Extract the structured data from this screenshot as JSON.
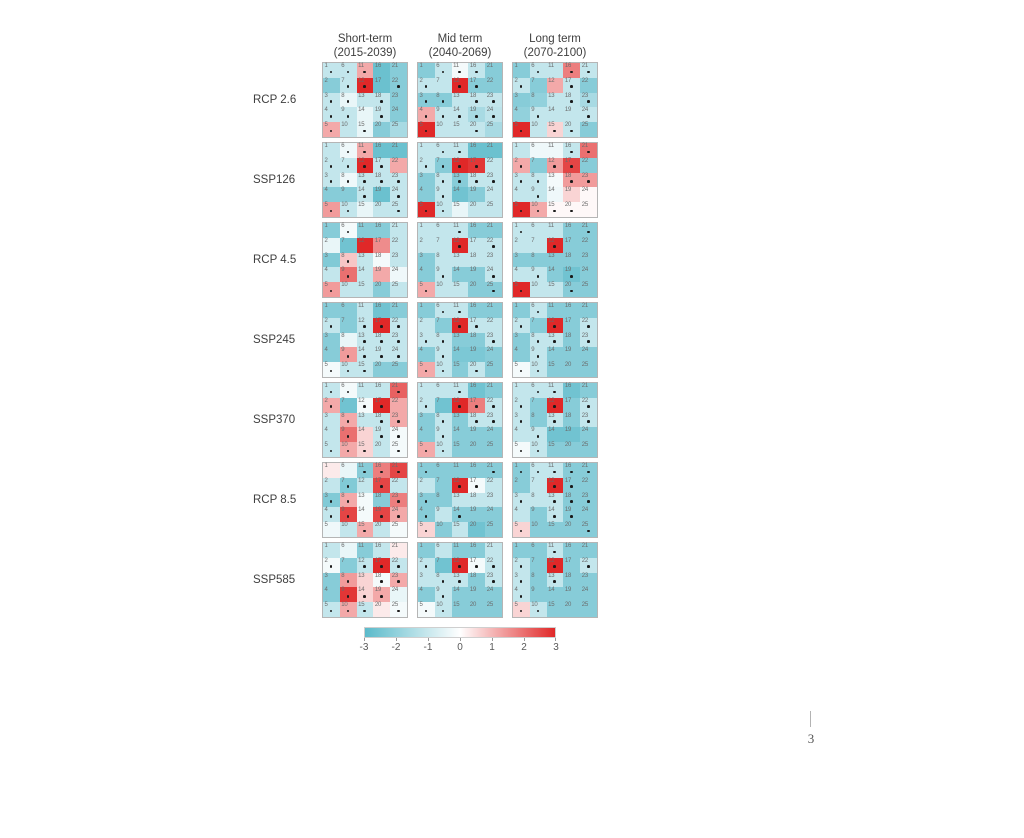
{
  "page": {
    "number": "3"
  },
  "chart_data": {
    "type": "heatmap",
    "title": "",
    "columns": [
      {
        "label": "Short-term",
        "period": "(2015-2039)"
      },
      {
        "label": "Mid term",
        "period": "(2040-2069)"
      },
      {
        "label": "Long term",
        "period": "(2070-2100)"
      }
    ],
    "rows": [
      "RCP 2.6",
      "SSP126",
      "RCP 4.5",
      "SSP245",
      "SSP370",
      "RCP 8.5",
      "SSP585"
    ],
    "cells_per_grid": 25,
    "cell_number_order": "column-major, 1-5 down first column through 21-25 down last column",
    "value_range": [
      -3,
      3
    ],
    "colorbar": {
      "ticks": [
        "-3",
        "-2",
        "-1",
        "0",
        "1",
        "2",
        "3"
      ],
      "min_color": "#5bbaca",
      "mid_color": "#ffffff",
      "max_color": "#e02828"
    },
    "grids": [
      {
        "row": "RCP 2.6",
        "col": "Short-term",
        "values": [
          -1.1,
          -2.2,
          -1.1,
          -1.1,
          1.2,
          -1.1,
          -1.1,
          -0.4,
          -1.1,
          -1.1,
          1.2,
          3,
          -1.1,
          -0.4,
          -0.4,
          -2.7,
          -2.7,
          -1.1,
          -1.1,
          -2.2,
          -2.2,
          -2.2,
          -2.2,
          -2.2,
          -1.6
        ],
        "dots": [
          1,
          0,
          1,
          1,
          1,
          1,
          1,
          1,
          1,
          0,
          1,
          1,
          0,
          0,
          1,
          0,
          0,
          1,
          1,
          0,
          0,
          1,
          0,
          0,
          0
        ]
      },
      {
        "row": "RCP 2.6",
        "col": "Mid term",
        "values": [
          -2.2,
          -1.1,
          -2.2,
          1.2,
          3,
          -1.1,
          -1.1,
          -2.2,
          -1.1,
          -1.1,
          -0.2,
          3,
          -1.1,
          -1.1,
          -1.1,
          -1.1,
          -2.2,
          -1.1,
          -1.6,
          -1.1,
          -2.2,
          -2.2,
          -1.1,
          -1.2,
          -1.6
        ],
        "dots": [
          0,
          1,
          1,
          1,
          1,
          1,
          0,
          1,
          1,
          0,
          1,
          1,
          0,
          1,
          0,
          1,
          1,
          1,
          1,
          1,
          0,
          0,
          1,
          1,
          0
        ]
      },
      {
        "row": "RCP 2.6",
        "col": "Long term",
        "values": [
          -2.2,
          -1.1,
          -2.2,
          -2.0,
          3,
          -1.1,
          -2.2,
          -2.0,
          -1.1,
          -1.1,
          -1.1,
          1.2,
          -1.1,
          -1.1,
          0.6,
          1.8,
          -1.1,
          -1.1,
          -1.1,
          -1.1,
          -1.1,
          -2.2,
          -1.6,
          -1.1,
          -2.2
        ],
        "dots": [
          0,
          1,
          0,
          0,
          1,
          1,
          0,
          0,
          1,
          0,
          0,
          0,
          0,
          0,
          1,
          1,
          1,
          1,
          0,
          1,
          1,
          0,
          1,
          1,
          0
        ]
      },
      {
        "row": "SSP126",
        "col": "Short-term",
        "values": [
          -1.1,
          -1.1,
          -1.1,
          -2.2,
          1.4,
          -0.3,
          -1.1,
          -0.3,
          -2.2,
          -1.1,
          1.2,
          3,
          -1.1,
          -1.1,
          -0.4,
          -2.7,
          -1.1,
          -1.1,
          -2.7,
          -1.1,
          -2.7,
          1.2,
          -1.1,
          -1.1,
          -1.1
        ],
        "dots": [
          0,
          1,
          1,
          0,
          1,
          1,
          1,
          1,
          0,
          1,
          1,
          1,
          1,
          1,
          0,
          0,
          1,
          1,
          0,
          0,
          0,
          0,
          1,
          1,
          1
        ]
      },
      {
        "row": "SSP126",
        "col": "Mid term",
        "values": [
          -1.1,
          -1.1,
          -2.2,
          -2.2,
          3,
          -1.1,
          -2.2,
          -1.1,
          -1.1,
          -1.1,
          -1.1,
          3,
          -2.2,
          -2.6,
          -0.4,
          -2.7,
          2.8,
          -1.1,
          -2.2,
          -1.1,
          -2.7,
          -1.1,
          -1.1,
          -1.1,
          -1.1
        ],
        "dots": [
          0,
          1,
          0,
          0,
          1,
          1,
          1,
          1,
          1,
          1,
          1,
          1,
          1,
          0,
          0,
          0,
          1,
          1,
          0,
          0,
          0,
          0,
          1,
          0,
          0
        ]
      },
      {
        "row": "SSP126",
        "col": "Long term",
        "values": [
          -1.1,
          1.2,
          -1.1,
          -1.1,
          3,
          -0.3,
          -2.2,
          -1.1,
          -1.1,
          1.2,
          -0.3,
          1.4,
          -0.2,
          -0.3,
          0.1,
          -1.1,
          2.6,
          1.4,
          0.6,
          0.1,
          2.0,
          -2.2,
          1.4,
          0.1,
          0.1
        ],
        "dots": [
          0,
          1,
          1,
          0,
          1,
          0,
          0,
          1,
          1,
          1,
          0,
          1,
          0,
          0,
          1,
          1,
          1,
          1,
          0,
          1,
          1,
          0,
          1,
          0,
          0
        ]
      },
      {
        "row": "RCP 4.5",
        "col": "Short-term",
        "values": [
          -2.2,
          -0.4,
          -2.3,
          -1.1,
          1.4,
          -0.2,
          -2.6,
          0.8,
          2.0,
          -1.1,
          -2.2,
          3,
          -1.1,
          -1.1,
          -1.1,
          -2.2,
          1.6,
          -0.2,
          1.2,
          -2.2,
          -1.1,
          -1.1,
          -1.1,
          -0.3,
          -1.1
        ],
        "dots": [
          0,
          0,
          0,
          0,
          1,
          1,
          0,
          1,
          1,
          0,
          0,
          0,
          0,
          0,
          0,
          0,
          0,
          0,
          0,
          0,
          0,
          0,
          0,
          0,
          0
        ]
      },
      {
        "row": "RCP 4.5",
        "col": "Mid term",
        "values": [
          -1.1,
          -1.1,
          -2.2,
          -2.2,
          1.2,
          -1.1,
          -1.1,
          -1.1,
          -1.1,
          -1.1,
          -1.1,
          3,
          -1.1,
          -2.2,
          -1.1,
          -2.2,
          -1.1,
          -1.1,
          -2.2,
          -2.2,
          -2.2,
          -1.1,
          -1.1,
          -1.1,
          -2.2
        ],
        "dots": [
          0,
          0,
          0,
          0,
          1,
          0,
          0,
          0,
          1,
          0,
          1,
          1,
          0,
          0,
          0,
          0,
          0,
          0,
          0,
          0,
          0,
          1,
          0,
          1,
          1
        ]
      },
      {
        "row": "RCP 4.5",
        "col": "Long term",
        "values": [
          -1.1,
          -1.1,
          -2.2,
          -1.1,
          3,
          -1.1,
          -1.1,
          -2.2,
          -1.1,
          -1.1,
          -1.1,
          3,
          -2.2,
          -2.2,
          -1.1,
          -2.2,
          -2.2,
          -2.2,
          -2.6,
          -2.2,
          -2.2,
          -2.2,
          -2.2,
          -2.2,
          -2.2
        ],
        "dots": [
          1,
          0,
          0,
          0,
          1,
          0,
          0,
          0,
          1,
          0,
          0,
          1,
          0,
          0,
          0,
          0,
          0,
          0,
          1,
          1,
          1,
          0,
          0,
          0,
          0
        ]
      },
      {
        "row": "SSP245",
        "col": "Short-term",
        "values": [
          -2.2,
          -1.1,
          -2.2,
          -2.2,
          -0.2,
          -2.2,
          -2.2,
          -0.4,
          1.4,
          -1.1,
          -1.1,
          -1.1,
          -1.1,
          -1.1,
          -1.1,
          -2.6,
          3,
          -1.1,
          -1.1,
          -2.2,
          -2.2,
          -1.1,
          -1.1,
          -1.1,
          -2.2
        ],
        "dots": [
          0,
          1,
          0,
          0,
          1,
          0,
          0,
          0,
          1,
          1,
          0,
          1,
          1,
          1,
          1,
          0,
          1,
          1,
          1,
          0,
          0,
          1,
          1,
          1,
          0
        ]
      },
      {
        "row": "SSP245",
        "col": "Mid term",
        "values": [
          -2.2,
          -1.1,
          -1.1,
          -2.2,
          1.2,
          -1.1,
          -2.2,
          -1.1,
          -1.1,
          -1.1,
          -1.1,
          3,
          -2.2,
          -2.4,
          -2.2,
          -2.2,
          -1.1,
          -2.2,
          -2.4,
          -1.1,
          -2.2,
          -1.1,
          -1.1,
          -2.2,
          -2.2
        ],
        "dots": [
          0,
          0,
          1,
          0,
          1,
          1,
          0,
          1,
          1,
          1,
          1,
          1,
          0,
          0,
          0,
          0,
          1,
          0,
          0,
          1,
          0,
          0,
          1,
          0,
          0
        ]
      },
      {
        "row": "SSP245",
        "col": "Long term",
        "values": [
          -2.2,
          -1.1,
          -2.2,
          -2.2,
          -0.2,
          -1.1,
          -2.2,
          -1.1,
          -1.1,
          -1.1,
          -2.2,
          3,
          -1.1,
          -2.2,
          -2.2,
          -2.2,
          -2.2,
          -2.2,
          -2.2,
          -2.2,
          -2.2,
          -1.1,
          -1.1,
          -2.2,
          -2.2
        ],
        "dots": [
          0,
          1,
          0,
          0,
          1,
          1,
          0,
          1,
          1,
          1,
          0,
          1,
          1,
          0,
          0,
          0,
          0,
          0,
          0,
          0,
          0,
          1,
          1,
          0,
          0
        ]
      },
      {
        "row": "SSP370",
        "col": "Short-term",
        "values": [
          -1.1,
          1.2,
          -1.1,
          -1.1,
          -1.1,
          -0.2,
          -2.6,
          1.2,
          2.0,
          1.2,
          -1.1,
          -0.2,
          -1.1,
          0.6,
          0.6,
          -1.1,
          3,
          -1.1,
          -1.1,
          -1.1,
          2.2,
          1.2,
          1.2,
          -0.2,
          -0.2
        ],
        "dots": [
          1,
          1,
          0,
          0,
          1,
          1,
          0,
          1,
          1,
          1,
          0,
          1,
          0,
          0,
          1,
          0,
          1,
          1,
          1,
          0,
          1,
          0,
          1,
          1,
          1
        ]
      },
      {
        "row": "SSP370",
        "col": "Mid term",
        "values": [
          -1.1,
          -1.1,
          -2.2,
          -2.2,
          1.2,
          -1.1,
          -2.6,
          -1.1,
          -1.1,
          -1.1,
          -1.1,
          3,
          -2.2,
          -2.2,
          -2.2,
          -2.6,
          1.8,
          -1.1,
          -2.2,
          -2.2,
          -2.2,
          -1.1,
          -1.1,
          -2.2,
          -2.2
        ],
        "dots": [
          0,
          1,
          0,
          0,
          1,
          0,
          0,
          1,
          1,
          1,
          1,
          1,
          0,
          0,
          0,
          0,
          1,
          1,
          0,
          0,
          0,
          1,
          1,
          0,
          0
        ]
      },
      {
        "row": "SSP370",
        "col": "Long term",
        "values": [
          -1.1,
          -1.1,
          -1.1,
          -1.1,
          -0.2,
          -1.1,
          -2.2,
          -2.2,
          -1.1,
          -1.1,
          -1.1,
          3,
          -1.1,
          -2.6,
          -2.2,
          -2.6,
          -2.2,
          -2.2,
          -2.6,
          -2.2,
          -2.2,
          -1.1,
          -1.1,
          -2.2,
          -2.2
        ],
        "dots": [
          0,
          1,
          1,
          0,
          1,
          1,
          0,
          0,
          1,
          1,
          1,
          1,
          1,
          0,
          0,
          0,
          0,
          0,
          0,
          0,
          0,
          1,
          1,
          0,
          0
        ]
      },
      {
        "row": "RCP 8.5",
        "col": "Short-term",
        "values": [
          0.3,
          -1.1,
          -2.3,
          -1.1,
          -0.3,
          -0.4,
          -2.3,
          1.2,
          2.6,
          -1.1,
          -2.2,
          -1.1,
          -0.2,
          -0.2,
          1.2,
          1.8,
          2.6,
          -2.2,
          2.6,
          -1.1,
          2.6,
          -1.1,
          1.8,
          1.2,
          -0.2
        ],
        "dots": [
          0,
          0,
          1,
          1,
          0,
          0,
          1,
          1,
          1,
          0,
          1,
          0,
          0,
          0,
          1,
          1,
          1,
          0,
          1,
          0,
          1,
          0,
          1,
          1,
          0
        ]
      },
      {
        "row": "RCP 8.5",
        "col": "Mid term",
        "values": [
          -2.2,
          -1.1,
          -2.2,
          -2.2,
          0.6,
          -2.2,
          -2.2,
          -2.2,
          -1.1,
          -2.2,
          -2.2,
          3,
          -1.1,
          -2.2,
          -1.1,
          -2.2,
          -0.2,
          -1.1,
          -2.2,
          -2.6,
          -2.2,
          -1.1,
          -1.1,
          -2.2,
          -2.2
        ],
        "dots": [
          1,
          0,
          1,
          1,
          1,
          0,
          0,
          0,
          0,
          0,
          0,
          1,
          0,
          1,
          0,
          0,
          1,
          0,
          0,
          0,
          1,
          0,
          0,
          0,
          0
        ]
      },
      {
        "row": "RCP 8.5",
        "col": "Long term",
        "values": [
          -2.2,
          -2.2,
          -1.1,
          -1.1,
          0.6,
          -1.1,
          -1.1,
          -1.1,
          -2.2,
          -2.2,
          -1.1,
          3,
          -1.1,
          -1.1,
          -2.2,
          -2.2,
          -2.2,
          -2.2,
          -2.2,
          -2.2,
          -2.2,
          -2.2,
          -2.2,
          -2.2,
          -2.2
        ],
        "dots": [
          1,
          0,
          1,
          0,
          1,
          1,
          0,
          0,
          0,
          0,
          1,
          1,
          1,
          1,
          0,
          1,
          1,
          1,
          1,
          0,
          1,
          0,
          1,
          0,
          1
        ]
      },
      {
        "row": "SSP585",
        "col": "Short-term",
        "values": [
          -1.1,
          -0.2,
          -2.2,
          -2.2,
          -1.1,
          -0.4,
          -2.2,
          1.4,
          2.8,
          1.2,
          -2.2,
          -1.1,
          0.6,
          0.6,
          -1.1,
          -1.1,
          3,
          -0.2,
          1.2,
          0.3,
          0.3,
          -1.1,
          1.2,
          -0.4,
          -0.2
        ],
        "dots": [
          0,
          1,
          0,
          0,
          1,
          0,
          0,
          1,
          1,
          1,
          0,
          1,
          0,
          1,
          1,
          0,
          1,
          1,
          1,
          0,
          0,
          1,
          1,
          0,
          1
        ]
      },
      {
        "row": "SSP585",
        "col": "Mid term",
        "values": [
          -2.2,
          -1.1,
          -1.1,
          -2.2,
          -0.2,
          -1.1,
          -2.6,
          -1.1,
          -1.1,
          -1.1,
          -2.2,
          3,
          -1.1,
          -2.2,
          -2.2,
          -2.2,
          -0.2,
          -2.2,
          -2.2,
          -2.2,
          -1.1,
          -1.1,
          -1.1,
          -2.2,
          -2.2
        ],
        "dots": [
          0,
          1,
          0,
          0,
          1,
          0,
          0,
          1,
          1,
          1,
          0,
          1,
          1,
          0,
          0,
          0,
          1,
          0,
          0,
          0,
          0,
          1,
          1,
          0,
          0
        ]
      },
      {
        "row": "SSP585",
        "col": "Long term",
        "values": [
          -2.2,
          -1.1,
          -1.1,
          -1.1,
          0.6,
          -2.2,
          -2.2,
          -2.2,
          -2.2,
          -1.1,
          -1.1,
          3,
          -1.1,
          -2.2,
          -2.2,
          -2.2,
          -2.2,
          -2.2,
          -2.2,
          -2.2,
          -2.2,
          -1.1,
          -2.2,
          -2.2,
          -2.2
        ],
        "dots": [
          0,
          1,
          1,
          1,
          1,
          0,
          0,
          0,
          0,
          1,
          1,
          1,
          1,
          0,
          0,
          0,
          0,
          0,
          0,
          0,
          0,
          1,
          0,
          0,
          0
        ]
      }
    ]
  }
}
